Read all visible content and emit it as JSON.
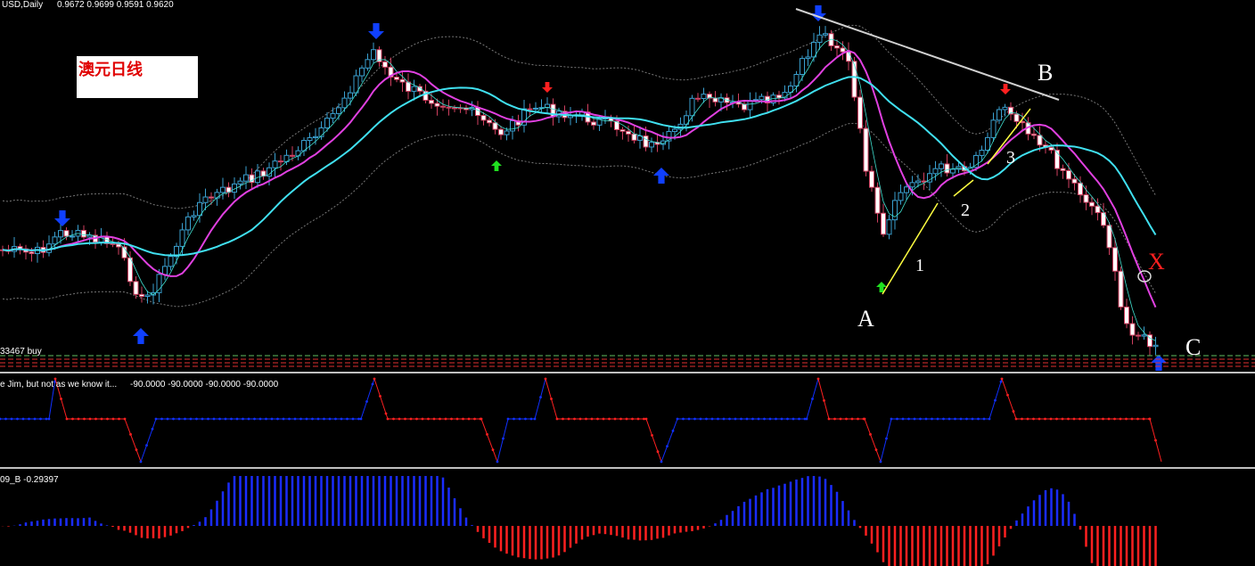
{
  "header": {
    "symbol": "USD,Daily",
    "ohlc": "0.9672 0.9699 0.9591 0.9620"
  },
  "chart_label": "澳元日线",
  "annotations": {
    "a": "A",
    "b": "B",
    "c": "C",
    "x": "X",
    "wave1": "1",
    "wave2": "2",
    "wave3": "3"
  },
  "signal_label": "33467 buy",
  "indicator1": {
    "title": "e Jim, but not as we know it...",
    "values": "-90.0000 -90.0000 -90.0000 -90.0000"
  },
  "indicator2": {
    "title": "09_B -0.29397"
  }
}
